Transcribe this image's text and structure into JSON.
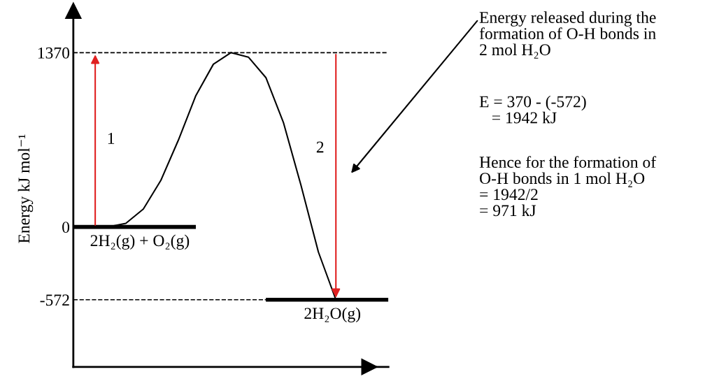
{
  "chart_data": {
    "type": "line",
    "ylabel": "Energy kJ mol⁻¹",
    "categories": [
      null,
      null,
      null,
      null,
      null,
      null,
      null,
      null,
      null,
      null,
      null,
      null,
      null,
      null,
      null,
      null,
      null,
      null,
      null
    ],
    "series": [
      {
        "name": "2H₂(g) + O₂(g)",
        "color": "#000000",
        "values": [
          0,
          0,
          0,
          0,
          0,
          0,
          0,
          0,
          null,
          null,
          null,
          null,
          null,
          null,
          null,
          null,
          null,
          null,
          null
        ]
      },
      {
        "name": "2H₂O(g)",
        "color": "#000000",
        "values": [
          null,
          null,
          null,
          null,
          null,
          null,
          null,
          null,
          null,
          null,
          null,
          -572,
          -572,
          -572,
          -572,
          -572,
          -572,
          -572,
          -572
        ]
      },
      {
        "color": "#000000",
        "values": [
          null,
          null,
          0,
          28,
          141,
          366,
          682,
          1033,
          1279,
          1370,
          1335,
          1174,
          822,
          330,
          -197,
          -572,
          null,
          null,
          null
        ]
      }
    ],
    "ylim": [
      -1100,
      1700
    ],
    "yticks": [
      -572,
      0,
      1370
    ],
    "ref_lines": [
      {
        "axis": "y",
        "value": 1370,
        "color": "#000000",
        "line_style": "dashed"
      },
      {
        "axis": "y",
        "value": -572,
        "color": "#000000",
        "line_style": "dashed"
      }
    ],
    "annotations": [
      "1",
      "2",
      "Energy released during the\nformation of O-H bonds in\n2 mol H₂O",
      "E = 370 - (-572)\n   = 1942 kJ",
      "Hence for the formation of\nO-H bonds in 1 mol H₂O\n= 1942/2\n= 971 kJ"
    ],
    "grid": false,
    "legend": false,
    "marker": "none",
    "line_style": "solid"
  }
}
